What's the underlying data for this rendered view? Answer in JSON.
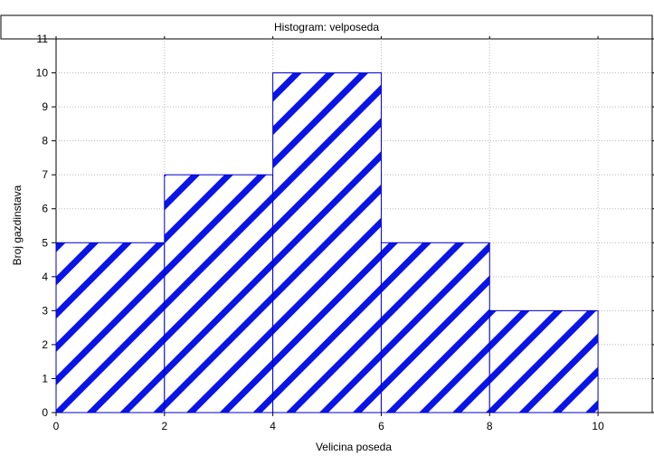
{
  "chart_data": {
    "type": "bar",
    "title": "Histogram: velposeda",
    "xlabel": "Velicina poseda",
    "ylabel": "Broj gazdinstava",
    "bins": [
      [
        0,
        2
      ],
      [
        2,
        4
      ],
      [
        4,
        6
      ],
      [
        6,
        8
      ],
      [
        8,
        10
      ]
    ],
    "values": [
      5,
      7,
      10,
      5,
      3
    ],
    "xlim": [
      0,
      11
    ],
    "ylim": [
      0,
      11
    ],
    "xticks": [
      0,
      2,
      4,
      6,
      8,
      10
    ],
    "yticks": [
      0,
      1,
      2,
      3,
      4,
      5,
      6,
      7,
      8,
      9,
      10,
      11
    ],
    "grid": true,
    "bar_fill_pattern": "diagonal-hatch",
    "colors": {
      "bar_stroke": "#0000cc",
      "hatch": "#0a14e6"
    }
  }
}
